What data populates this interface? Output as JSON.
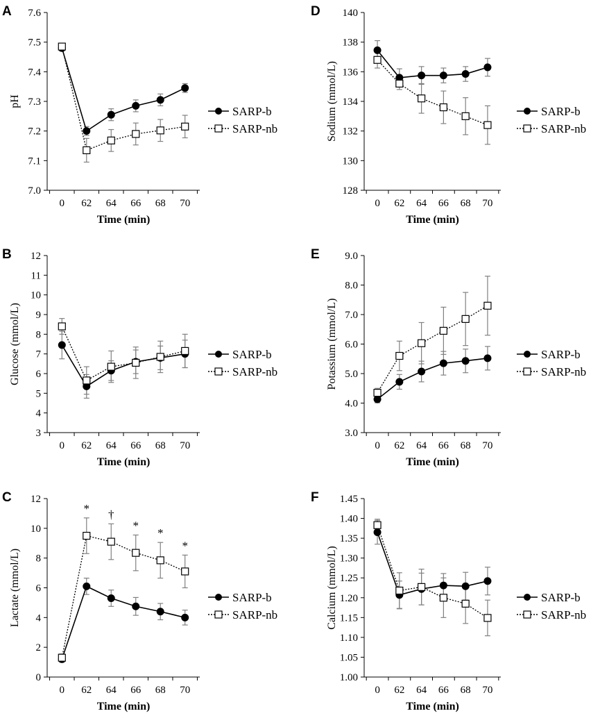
{
  "figure": {
    "colors": {
      "axis": "#000000",
      "error_bar": "#808080",
      "series_b_marker": "#000000",
      "series_nb_fill": "#ffffff"
    }
  },
  "chart_data": [
    {
      "panel": "A",
      "type": "line",
      "title": "",
      "xlabel": "Time (min)",
      "ylabel": "pH",
      "categories": [
        "0",
        "62",
        "64",
        "66",
        "68",
        "70"
      ],
      "ylim": [
        7.0,
        7.6
      ],
      "yticks": [
        "7.0",
        "7.1",
        "7.2",
        "7.3",
        "7.4",
        "7.5",
        "7.6"
      ],
      "series": [
        {
          "name": "SARP-b",
          "style": "solid",
          "marker": "filled-circle",
          "values": [
            7.48,
            7.2,
            7.255,
            7.285,
            7.305,
            7.345
          ],
          "errors": [
            0.01,
            0.015,
            0.02,
            0.02,
            0.02,
            0.015
          ]
        },
        {
          "name": "SARP-nb",
          "style": "dotted",
          "marker": "open-square",
          "values": [
            7.485,
            7.135,
            7.168,
            7.19,
            7.202,
            7.215
          ],
          "errors": [
            0.01,
            0.04,
            0.037,
            0.037,
            0.037,
            0.038
          ]
        }
      ],
      "annotations": []
    },
    {
      "panel": "B",
      "type": "line",
      "title": "",
      "xlabel": "Time (min)",
      "ylabel": "Glucose (mmol/L)",
      "categories": [
        "0",
        "62",
        "64",
        "66",
        "68",
        "70"
      ],
      "ylim": [
        3,
        12
      ],
      "yticks": [
        "3",
        "4",
        "5",
        "6",
        "7",
        "8",
        "9",
        "10",
        "11",
        "12"
      ],
      "series": [
        {
          "name": "SARP-b",
          "style": "solid",
          "marker": "filled-circle",
          "values": [
            7.45,
            5.35,
            6.15,
            6.6,
            6.8,
            7.0
          ],
          "errors": [
            0.7,
            0.6,
            0.5,
            0.6,
            0.6,
            0.7
          ]
        },
        {
          "name": "SARP-nb",
          "style": "dotted",
          "marker": "open-square",
          "values": [
            8.4,
            5.65,
            6.35,
            6.55,
            6.85,
            7.15
          ],
          "errors": [
            0.4,
            0.7,
            0.8,
            0.8,
            0.8,
            0.85
          ]
        }
      ],
      "annotations": []
    },
    {
      "panel": "C",
      "type": "line",
      "title": "",
      "xlabel": "Time (min)",
      "ylabel": "Lactate (mmol/L)",
      "categories": [
        "0",
        "62",
        "64",
        "66",
        "68",
        "70"
      ],
      "ylim": [
        0,
        12
      ],
      "yticks": [
        "0",
        "2",
        "4",
        "6",
        "8",
        "10",
        "12"
      ],
      "series": [
        {
          "name": "SARP-b",
          "style": "solid",
          "marker": "filled-circle",
          "values": [
            1.2,
            6.1,
            5.3,
            4.75,
            4.4,
            4.0
          ],
          "errors": [
            0.2,
            0.55,
            0.55,
            0.6,
            0.55,
            0.5
          ]
        },
        {
          "name": "SARP-nb",
          "style": "dotted",
          "marker": "open-square",
          "values": [
            1.3,
            9.5,
            9.1,
            8.35,
            7.85,
            7.1
          ],
          "errors": [
            0.25,
            1.2,
            1.2,
            1.2,
            1.2,
            1.1
          ]
        }
      ],
      "annotations": [
        {
          "x": "62",
          "text": "*"
        },
        {
          "x": "64",
          "text": "†"
        },
        {
          "x": "66",
          "text": "*"
        },
        {
          "x": "68",
          "text": "*"
        },
        {
          "x": "70",
          "text": "*"
        }
      ]
    },
    {
      "panel": "D",
      "type": "line",
      "title": "",
      "xlabel": "Time (min)",
      "ylabel": "Sodium (mmol/L)",
      "categories": [
        "0",
        "62",
        "64",
        "66",
        "68",
        "70"
      ],
      "ylim": [
        128,
        140
      ],
      "yticks": [
        "128",
        "130",
        "132",
        "134",
        "136",
        "138",
        "140"
      ],
      "series": [
        {
          "name": "SARP-b",
          "style": "solid",
          "marker": "filled-circle",
          "values": [
            137.45,
            135.6,
            135.75,
            135.75,
            135.85,
            136.3
          ],
          "errors": [
            0.65,
            0.6,
            0.6,
            0.5,
            0.5,
            0.6
          ]
        },
        {
          "name": "SARP-nb",
          "style": "dotted",
          "marker": "open-square",
          "values": [
            136.8,
            135.2,
            134.2,
            133.6,
            133.0,
            132.4
          ],
          "errors": [
            0.55,
            0.4,
            1.0,
            1.1,
            1.25,
            1.3
          ]
        }
      ],
      "annotations": []
    },
    {
      "panel": "E",
      "type": "line",
      "title": "",
      "xlabel": "Time (min)",
      "ylabel": "Potassium (mmol/L)",
      "categories": [
        "0",
        "62",
        "64",
        "66",
        "68",
        "70"
      ],
      "ylim": [
        3.0,
        9.0
      ],
      "yticks": [
        "3.0",
        "4.0",
        "5.0",
        "6.0",
        "7.0",
        "8.0",
        "9.0"
      ],
      "series": [
        {
          "name": "SARP-b",
          "style": "solid",
          "marker": "filled-circle",
          "values": [
            4.13,
            4.72,
            5.07,
            5.35,
            5.43,
            5.52
          ],
          "errors": [
            0.12,
            0.25,
            0.35,
            0.4,
            0.4,
            0.4
          ]
        },
        {
          "name": "SARP-nb",
          "style": "dotted",
          "marker": "open-square",
          "values": [
            4.35,
            5.6,
            6.03,
            6.45,
            6.85,
            7.3
          ],
          "errors": [
            0.15,
            0.5,
            0.7,
            0.8,
            0.9,
            1.0
          ]
        }
      ],
      "annotations": []
    },
    {
      "panel": "F",
      "type": "line",
      "title": "",
      "xlabel": "Time (min)",
      "ylabel": "Calcium (mmol/L)",
      "categories": [
        "0",
        "62",
        "64",
        "66",
        "68",
        "70"
      ],
      "ylim": [
        1.0,
        1.45
      ],
      "yticks": [
        "1.00",
        "1.05",
        "1.10",
        "1.15",
        "1.20",
        "1.25",
        "1.30",
        "1.35",
        "1.40",
        "1.45"
      ],
      "series": [
        {
          "name": "SARP-b",
          "style": "solid",
          "marker": "filled-circle",
          "values": [
            1.365,
            1.207,
            1.222,
            1.231,
            1.229,
            1.242
          ],
          "errors": [
            0.03,
            0.035,
            0.04,
            0.03,
            0.035,
            0.035
          ]
        },
        {
          "name": "SARP-nb",
          "style": "dotted",
          "marker": "open-square",
          "values": [
            1.383,
            1.218,
            1.227,
            1.2,
            1.185,
            1.149
          ],
          "errors": [
            0.015,
            0.045,
            0.045,
            0.05,
            0.05,
            0.045
          ]
        }
      ],
      "annotations": []
    }
  ]
}
